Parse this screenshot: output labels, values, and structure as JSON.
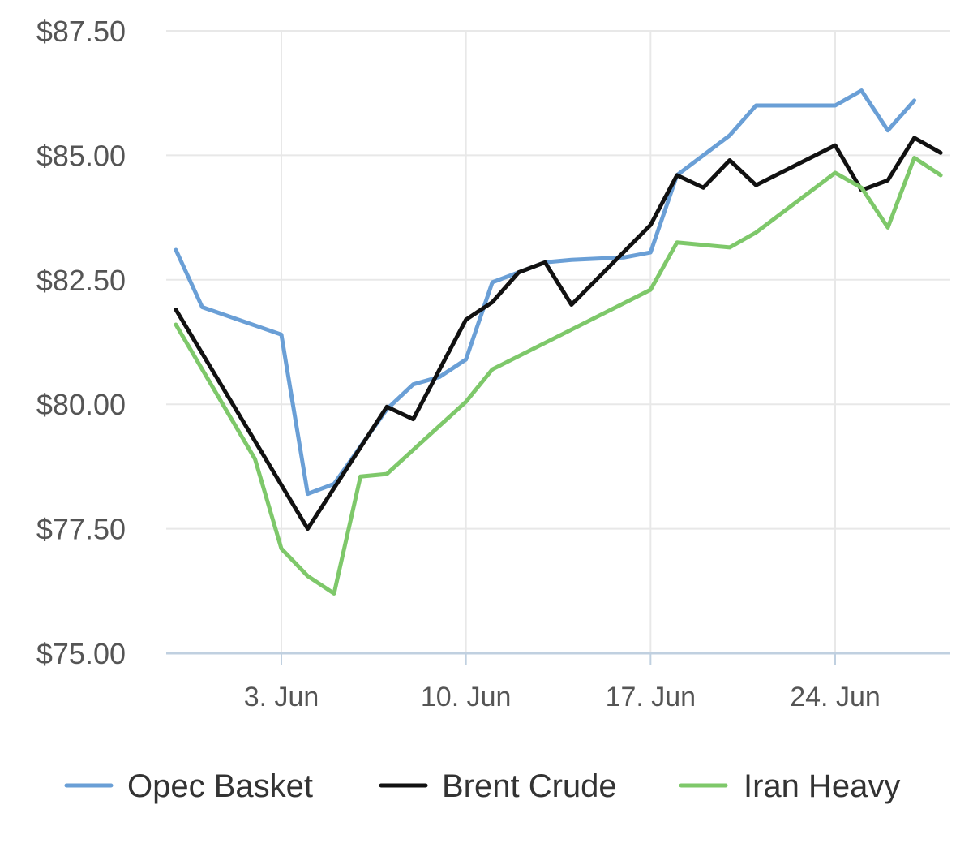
{
  "chart_data": {
    "type": "line",
    "title": "",
    "xlabel": "",
    "ylabel": "",
    "ylim": [
      75,
      87.5
    ],
    "y_ticks": [
      75,
      77.5,
      80,
      82.5,
      85,
      87.5
    ],
    "y_tick_labels": [
      "$75.00",
      "$77.50",
      "$80.00",
      "$82.50",
      "$85.00",
      "$87.50"
    ],
    "x_range": [
      "2015-05-30",
      "2015-06-28"
    ],
    "x_ticks": [
      "2015-06-03",
      "2015-06-10",
      "2015-06-17",
      "2015-06-24"
    ],
    "x_tick_labels": [
      "3. Jun",
      "10. Jun",
      "17. Jun",
      "24. Jun"
    ],
    "grid": true,
    "legend": "bottom",
    "series": [
      {
        "name": "Opec Basket",
        "color": "#6a9fd6",
        "points": [
          [
            "2015-05-30",
            83.1
          ],
          [
            "2015-05-31",
            81.95
          ],
          [
            "2015-06-03",
            81.4
          ],
          [
            "2015-06-04",
            78.2
          ],
          [
            "2015-06-05",
            78.4
          ],
          [
            "2015-06-07",
            79.9
          ],
          [
            "2015-06-08",
            80.4
          ],
          [
            "2015-06-09",
            80.55
          ],
          [
            "2015-06-10",
            80.9
          ],
          [
            "2015-06-11",
            82.45
          ],
          [
            "2015-06-12",
            82.65
          ],
          [
            "2015-06-13",
            82.85
          ],
          [
            "2015-06-14",
            82.9
          ],
          [
            "2015-06-16",
            82.95
          ],
          [
            "2015-06-17",
            83.05
          ],
          [
            "2015-06-18",
            84.6
          ],
          [
            "2015-06-20",
            85.4
          ],
          [
            "2015-06-21",
            86.0
          ],
          [
            "2015-06-24",
            86.0
          ],
          [
            "2015-06-25",
            86.3
          ],
          [
            "2015-06-26",
            85.5
          ],
          [
            "2015-06-27",
            86.1
          ]
        ]
      },
      {
        "name": "Brent Crude",
        "color": "#111111",
        "points": [
          [
            "2015-05-30",
            81.9
          ],
          [
            "2015-06-04",
            77.5
          ],
          [
            "2015-06-07",
            79.95
          ],
          [
            "2015-06-08",
            79.7
          ],
          [
            "2015-06-10",
            81.7
          ],
          [
            "2015-06-11",
            82.05
          ],
          [
            "2015-06-12",
            82.65
          ],
          [
            "2015-06-13",
            82.85
          ],
          [
            "2015-06-14",
            82.0
          ],
          [
            "2015-06-17",
            83.6
          ],
          [
            "2015-06-18",
            84.6
          ],
          [
            "2015-06-19",
            84.35
          ],
          [
            "2015-06-20",
            84.9
          ],
          [
            "2015-06-21",
            84.4
          ],
          [
            "2015-06-24",
            85.2
          ],
          [
            "2015-06-25",
            84.3
          ],
          [
            "2015-06-26",
            84.5
          ],
          [
            "2015-06-27",
            85.35
          ],
          [
            "2015-06-28",
            85.05
          ]
        ]
      },
      {
        "name": "Iran Heavy",
        "color": "#7ec86a",
        "points": [
          [
            "2015-05-30",
            81.6
          ],
          [
            "2015-06-02",
            78.9
          ],
          [
            "2015-06-03",
            77.1
          ],
          [
            "2015-06-04",
            76.55
          ],
          [
            "2015-06-05",
            76.2
          ],
          [
            "2015-06-06",
            78.55
          ],
          [
            "2015-06-07",
            78.6
          ],
          [
            "2015-06-10",
            80.05
          ],
          [
            "2015-06-11",
            80.7
          ],
          [
            "2015-06-14",
            81.5
          ],
          [
            "2015-06-17",
            82.3
          ],
          [
            "2015-06-18",
            83.25
          ],
          [
            "2015-06-20",
            83.15
          ],
          [
            "2015-06-21",
            83.45
          ],
          [
            "2015-06-24",
            84.65
          ],
          [
            "2015-06-25",
            84.35
          ],
          [
            "2015-06-26",
            83.55
          ],
          [
            "2015-06-27",
            84.95
          ],
          [
            "2015-06-28",
            84.6
          ]
        ]
      }
    ]
  },
  "colors": {
    "gridline": "#e8e8e8",
    "x_axis_line": "#c0d0e0",
    "tick_text": "#555555",
    "legend_text": "#333333"
  }
}
